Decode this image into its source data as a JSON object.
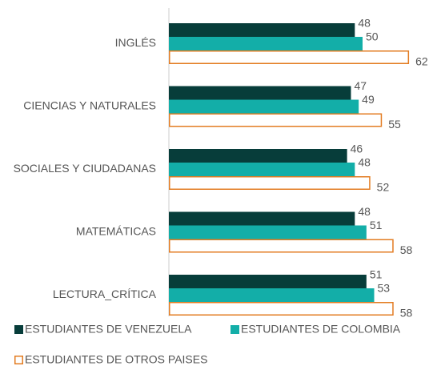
{
  "chart_data": {
    "type": "hbar",
    "categories": [
      "INGLÉS",
      "CIENCIAS Y NATURALES",
      "SOCIALES Y CIUDADANAS",
      "MATEMÁTICAS",
      "LECTURA_CRÍTICA"
    ],
    "series": [
      {
        "name": "ESTUDIANTES DE VENEZUELA",
        "color": "#073d3a",
        "values": [
          48,
          47,
          46,
          48,
          51
        ]
      },
      {
        "name": "ESTUDIANTES DE COLOMBIA",
        "color": "#13aea8",
        "values": [
          50,
          49,
          48,
          51,
          53
        ]
      },
      {
        "name": "ESTUDIANTES DE OTROS PAISES",
        "color": "#e37c22",
        "outline": true,
        "values": [
          62,
          55,
          52,
          58,
          58
        ]
      }
    ]
  }
}
